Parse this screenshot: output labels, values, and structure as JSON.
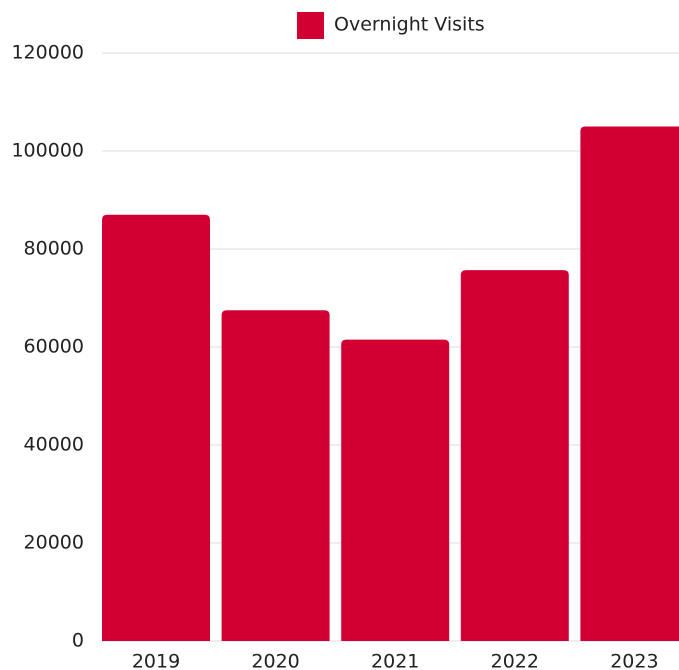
{
  "chart_data": {
    "type": "bar",
    "categories": [
      "2019",
      "2020",
      "2021",
      "2022",
      "2023"
    ],
    "series": [
      {
        "name": "Overnight Visits",
        "color": "#d20032",
        "values": [
          87000,
          67500,
          61500,
          75700,
          105000
        ]
      }
    ],
    "ylim": [
      0,
      120000
    ],
    "yticks": [
      0,
      20000,
      40000,
      60000,
      80000,
      100000,
      120000
    ],
    "grid": true,
    "legend": "top"
  }
}
